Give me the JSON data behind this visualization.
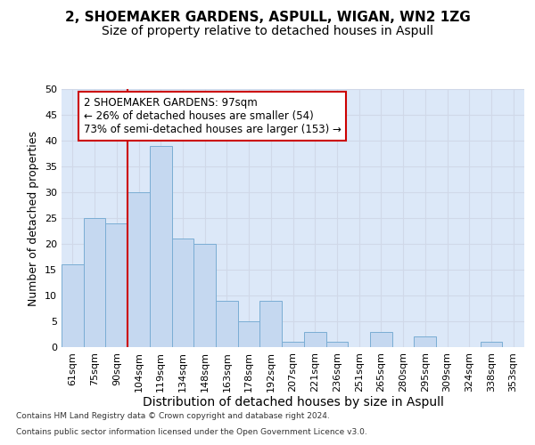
{
  "title1": "2, SHOEMAKER GARDENS, ASPULL, WIGAN, WN2 1ZG",
  "title2": "Size of property relative to detached houses in Aspull",
  "xlabel": "Distribution of detached houses by size in Aspull",
  "ylabel": "Number of detached properties",
  "categories": [
    "61sqm",
    "75sqm",
    "90sqm",
    "104sqm",
    "119sqm",
    "134sqm",
    "148sqm",
    "163sqm",
    "178sqm",
    "192sqm",
    "207sqm",
    "221sqm",
    "236sqm",
    "251sqm",
    "265sqm",
    "280sqm",
    "295sqm",
    "309sqm",
    "324sqm",
    "338sqm",
    "353sqm"
  ],
  "values": [
    16,
    25,
    24,
    30,
    39,
    21,
    20,
    9,
    5,
    9,
    1,
    3,
    1,
    0,
    3,
    0,
    2,
    0,
    0,
    1,
    0
  ],
  "bar_color": "#c5d8f0",
  "bar_edge_color": "#7aadd4",
  "vline_x": 2.5,
  "vline_color": "#cc0000",
  "annotation_line1": "2 SHOEMAKER GARDENS: 97sqm",
  "annotation_line2": "← 26% of detached houses are smaller (54)",
  "annotation_line3": "73% of semi-detached houses are larger (153) →",
  "annotation_box_color": "#ffffff",
  "annotation_box_edge": "#cc0000",
  "ylim": [
    0,
    50
  ],
  "yticks": [
    0,
    5,
    10,
    15,
    20,
    25,
    30,
    35,
    40,
    45,
    50
  ],
  "grid_color": "#d0d8e8",
  "bg_color": "#dce8f8",
  "fig_bg": "#ffffff",
  "footer1": "Contains HM Land Registry data © Crown copyright and database right 2024.",
  "footer2": "Contains public sector information licensed under the Open Government Licence v3.0.",
  "title1_fontsize": 11,
  "title2_fontsize": 10,
  "xlabel_fontsize": 10,
  "ylabel_fontsize": 9,
  "tick_fontsize": 8,
  "annot_fontsize": 8.5,
  "footer_fontsize": 6.5
}
